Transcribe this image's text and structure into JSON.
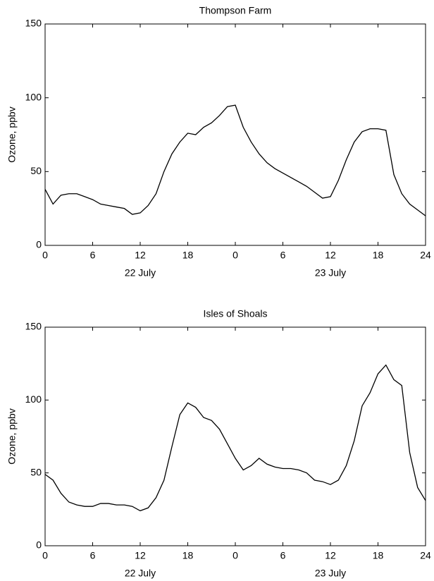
{
  "chart_data": [
    {
      "type": "line",
      "title": "Thompson Farm",
      "y_label": "Ozone, ppbv",
      "x": [
        0,
        1,
        2,
        3,
        4,
        5,
        6,
        7,
        8,
        9,
        10,
        11,
        12,
        13,
        14,
        15,
        16,
        17,
        18,
        19,
        20,
        21,
        22,
        23,
        24,
        25,
        26,
        27,
        28,
        29,
        30,
        31,
        32,
        33,
        34,
        35,
        36,
        37,
        38,
        39,
        40,
        41,
        42,
        43,
        44,
        45,
        46,
        47,
        48
      ],
      "series": [
        {
          "name": "Ozone",
          "color": "#000000",
          "values": [
            38,
            28,
            34,
            35,
            35,
            33,
            31,
            28,
            27,
            26,
            25,
            21,
            22,
            27,
            35,
            50,
            62,
            70,
            76,
            75,
            80,
            83,
            88,
            94,
            95,
            80,
            70,
            62,
            56,
            52,
            49,
            46,
            43,
            40,
            36,
            32,
            33,
            44,
            58,
            70,
            77,
            79,
            79,
            78,
            48,
            35,
            28,
            24,
            20
          ]
        }
      ],
      "xlim": [
        0,
        48
      ],
      "xticks": [
        {
          "value": 0,
          "label": "0"
        },
        {
          "value": 6,
          "label": "6"
        },
        {
          "value": 12,
          "label": "12"
        },
        {
          "value": 18,
          "label": "18"
        },
        {
          "value": 24,
          "label": "0"
        },
        {
          "value": 30,
          "label": "6"
        },
        {
          "value": 36,
          "label": "12"
        },
        {
          "value": 42,
          "label": "18"
        },
        {
          "value": 48,
          "label": "24"
        }
      ],
      "ylim": [
        0,
        150
      ],
      "yticks": [
        0,
        50,
        100,
        150
      ],
      "annotations": [
        "22 July",
        "23 July"
      ]
    },
    {
      "type": "line",
      "title": "Isles of Shoals",
      "y_label": "Ozone, ppbv",
      "x": [
        0,
        1,
        2,
        3,
        4,
        5,
        6,
        7,
        8,
        9,
        10,
        11,
        12,
        13,
        14,
        15,
        16,
        17,
        18,
        19,
        20,
        21,
        22,
        23,
        24,
        25,
        26,
        27,
        28,
        29,
        30,
        31,
        32,
        33,
        34,
        35,
        36,
        37,
        38,
        39,
        40,
        41,
        42,
        43,
        44,
        45,
        46,
        47,
        48
      ],
      "series": [
        {
          "name": "Ozone",
          "color": "#000000",
          "values": [
            49,
            45,
            36,
            30,
            28,
            27,
            27,
            29,
            29,
            28,
            28,
            27,
            24,
            26,
            33,
            45,
            68,
            90,
            98,
            95,
            88,
            86,
            80,
            70,
            60,
            52,
            55,
            60,
            56,
            54,
            53,
            53,
            52,
            50,
            45,
            44,
            42,
            45,
            55,
            72,
            96,
            105,
            118,
            124,
            114,
            110,
            64,
            40,
            31
          ]
        }
      ],
      "xlim": [
        0,
        48
      ],
      "xticks": [
        {
          "value": 0,
          "label": "0"
        },
        {
          "value": 6,
          "label": "6"
        },
        {
          "value": 12,
          "label": "12"
        },
        {
          "value": 18,
          "label": "18"
        },
        {
          "value": 24,
          "label": "0"
        },
        {
          "value": 30,
          "label": "6"
        },
        {
          "value": 36,
          "label": "12"
        },
        {
          "value": 42,
          "label": "18"
        },
        {
          "value": 48,
          "label": "24"
        }
      ],
      "ylim": [
        0,
        150
      ],
      "yticks": [
        0,
        50,
        100,
        150
      ],
      "annotations": [
        "22 July",
        "23 July"
      ]
    }
  ]
}
